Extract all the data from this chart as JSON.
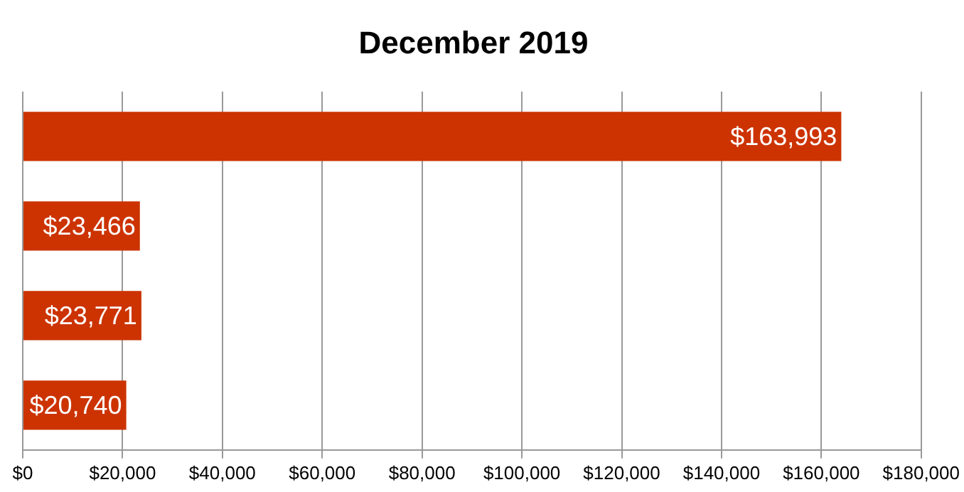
{
  "chart_data": {
    "type": "bar",
    "orientation": "horizontal",
    "title": "December 2019",
    "categories": [
      null,
      null,
      null,
      null
    ],
    "values": [
      163993,
      23466,
      23771,
      20740
    ],
    "value_labels": [
      "$163,993",
      "$23,466",
      "$23,771",
      "$20,740"
    ],
    "color": "#cc3300",
    "xlim": [
      0,
      180000
    ],
    "xticks": [
      {
        "value": 0,
        "label": "$0"
      },
      {
        "value": 20000,
        "label": "$20,000"
      },
      {
        "value": 40000,
        "label": "$40,000"
      },
      {
        "value": 60000,
        "label": "$60,000"
      },
      {
        "value": 80000,
        "label": "$80,000"
      },
      {
        "value": 100000,
        "label": "$100,000"
      },
      {
        "value": 120000,
        "label": "$120,000"
      },
      {
        "value": 140000,
        "label": "$140,000"
      },
      {
        "value": 160000,
        "label": "$160,000"
      },
      {
        "value": 180000,
        "label": "$180,000"
      }
    ],
    "grid": "x",
    "legend": false
  }
}
